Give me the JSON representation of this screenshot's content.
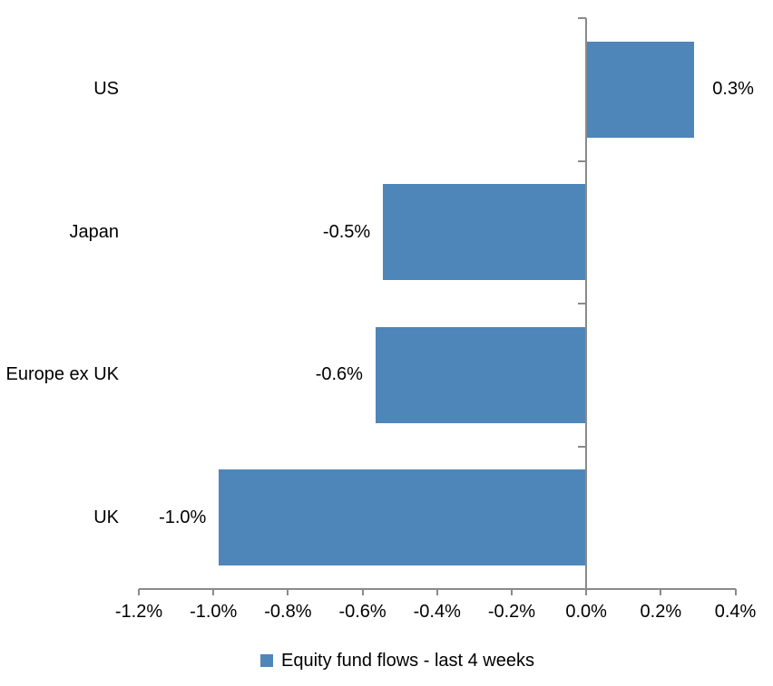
{
  "chart_data": {
    "type": "bar",
    "orientation": "horizontal",
    "title": "",
    "xlabel": "",
    "ylabel": "",
    "categories": [
      "US",
      "Japan",
      "Europe ex UK",
      "UK"
    ],
    "values": [
      0.3,
      -0.5,
      -0.6,
      -1.0
    ],
    "values_precise": [
      0.29,
      -0.545,
      -0.565,
      -0.985
    ],
    "value_labels": [
      "0.3%",
      "-0.5%",
      "-0.6%",
      "-1.0%"
    ],
    "x_tick_labels": [
      "-1.2%",
      "-1.0%",
      "-0.8%",
      "-0.6%",
      "-0.4%",
      "-0.2%",
      "0.0%",
      "0.2%",
      "0.4%"
    ],
    "xlim": [
      -1.2,
      0.4
    ],
    "grid": false,
    "legend_position": "bottom",
    "legend": [
      {
        "label": "Equity fund flows - last 4 weeks",
        "color": "#4E86BA"
      }
    ],
    "colors": {
      "bar": "#4E86BA",
      "axis": "#8A8A8A",
      "text": "#000000",
      "background": "#FFFFFF"
    }
  }
}
